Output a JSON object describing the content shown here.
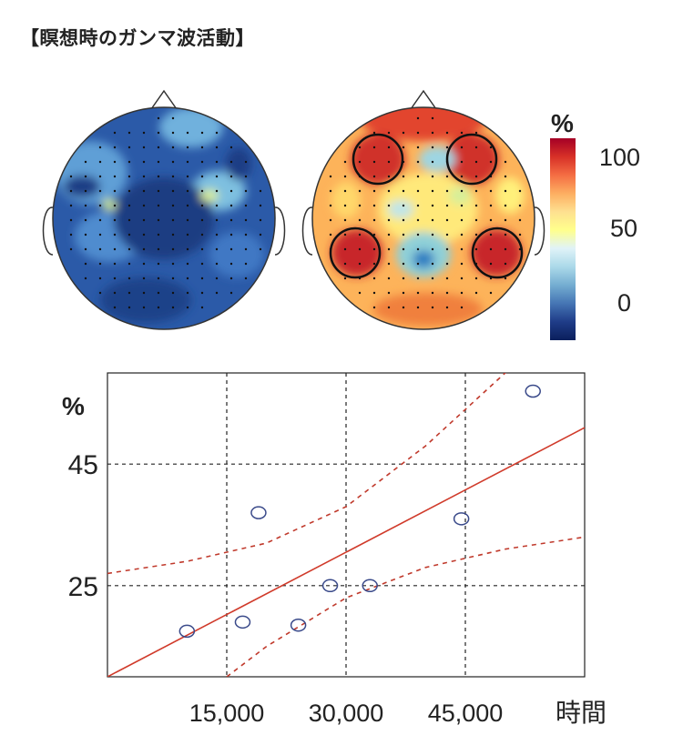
{
  "title": "【瞑想時のガンマ波活動】",
  "colorbar": {
    "unit": "%",
    "ticks": [
      "100",
      "50",
      "0"
    ],
    "colors": [
      "#a50026",
      "#d73027",
      "#f46d43",
      "#fdae61",
      "#fee090",
      "#ffff8c",
      "#e0f3f8",
      "#abd9e9",
      "#74add1",
      "#4575b4",
      "#1f3c88",
      "#0a1f5c"
    ]
  },
  "topomaps": [
    {
      "name": "left-head",
      "dominant": "low"
    },
    {
      "name": "right-head",
      "dominant": "high",
      "highlight_regions": 4
    }
  ],
  "chart_data": {
    "type": "scatter",
    "title": "",
    "xlabel": "時間",
    "ylabel": "%",
    "x_ticks": [
      15000,
      30000,
      45000
    ],
    "x_tick_labels": [
      "15,000",
      "30,000",
      "45,000"
    ],
    "y_ticks": [
      25,
      45
    ],
    "y_tick_labels": [
      "25",
      "45"
    ],
    "xlim": [
      0,
      60000
    ],
    "ylim": [
      10,
      60
    ],
    "grid": true,
    "points": [
      {
        "x": 10000,
        "y": 17.5
      },
      {
        "x": 17000,
        "y": 19
      },
      {
        "x": 19000,
        "y": 37
      },
      {
        "x": 24000,
        "y": 18.5
      },
      {
        "x": 28000,
        "y": 25
      },
      {
        "x": 33000,
        "y": 25
      },
      {
        "x": 44500,
        "y": 36
      },
      {
        "x": 53500,
        "y": 57
      }
    ],
    "fit_line": [
      {
        "x": 0,
        "y": 10
      },
      {
        "x": 60000,
        "y": 51
      }
    ],
    "ci_upper": [
      {
        "x": 0,
        "y": 27
      },
      {
        "x": 10000,
        "y": 29
      },
      {
        "x": 20000,
        "y": 32
      },
      {
        "x": 30000,
        "y": 38
      },
      {
        "x": 40000,
        "y": 48
      },
      {
        "x": 50000,
        "y": 60
      },
      {
        "x": 51000,
        "y": 61
      }
    ],
    "ci_lower": [
      {
        "x": 15000,
        "y": 10
      },
      {
        "x": 20000,
        "y": 15
      },
      {
        "x": 30000,
        "y": 23
      },
      {
        "x": 40000,
        "y": 28
      },
      {
        "x": 50000,
        "y": 31
      },
      {
        "x": 60000,
        "y": 33
      }
    ],
    "colors": {
      "points": "#3a4a8a",
      "fit": "#d03a2a",
      "ci": "#c0392b",
      "grid": "#222222"
    }
  }
}
